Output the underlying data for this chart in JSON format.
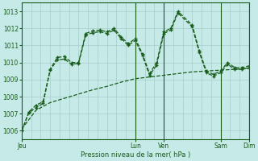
{
  "background_color": "#c5eae7",
  "grid_color": "#a8ccc9",
  "line_color": "#1a5c1a",
  "xlabel": "Pression niveau de la mer( hPa )",
  "ylim": [
    1005.5,
    1013.5
  ],
  "yticks": [
    1006,
    1007,
    1008,
    1009,
    1010,
    1011,
    1012,
    1013
  ],
  "xlim": [
    0,
    192
  ],
  "series1_x": [
    0,
    6,
    12,
    18,
    24,
    30,
    36,
    42,
    48,
    54,
    60,
    66,
    72,
    78,
    84,
    90,
    96,
    102,
    108,
    114,
    120,
    126,
    132,
    144,
    150,
    156,
    162,
    168,
    174,
    180,
    186,
    192
  ],
  "series1_y": [
    1006.0,
    1007.1,
    1007.5,
    1007.7,
    1009.6,
    1010.3,
    1010.35,
    1010.0,
    1010.0,
    1011.7,
    1011.85,
    1011.9,
    1011.8,
    1012.0,
    1011.5,
    1011.1,
    1011.4,
    1010.5,
    1009.35,
    1010.0,
    1011.8,
    1012.0,
    1013.0,
    1012.2,
    1010.7,
    1009.5,
    1009.3,
    1009.5,
    1010.0,
    1009.7,
    1009.7,
    1009.8
  ],
  "series2_x": [
    0,
    12,
    24,
    36,
    48,
    60,
    72,
    84,
    96,
    108,
    120,
    132,
    144,
    156,
    168,
    180,
    192
  ],
  "series2_y": [
    1006.1,
    1007.2,
    1007.65,
    1007.9,
    1008.15,
    1008.4,
    1008.6,
    1008.85,
    1009.05,
    1009.15,
    1009.25,
    1009.35,
    1009.45,
    1009.5,
    1009.55,
    1009.6,
    1009.65
  ],
  "series3_x": [
    0,
    6,
    12,
    18,
    24,
    30,
    36,
    42,
    48,
    54,
    60,
    66,
    72,
    78,
    84,
    90,
    96,
    102,
    108,
    114,
    120,
    126,
    132,
    144,
    150,
    156,
    162,
    168,
    174,
    180,
    186,
    192
  ],
  "series3_y": [
    1006.0,
    1007.05,
    1007.35,
    1007.6,
    1009.55,
    1010.15,
    1010.2,
    1009.9,
    1009.95,
    1011.6,
    1011.75,
    1011.8,
    1011.7,
    1011.9,
    1011.4,
    1011.0,
    1011.3,
    1010.4,
    1009.25,
    1009.85,
    1011.7,
    1011.9,
    1012.9,
    1012.1,
    1010.6,
    1009.4,
    1009.2,
    1009.4,
    1009.9,
    1009.6,
    1009.6,
    1009.7
  ],
  "day_positions": [
    0,
    96,
    120,
    168,
    192
  ],
  "day_labels": [
    "Jeu",
    "Lun",
    "Ven",
    "Sam",
    "Dim"
  ],
  "vert_lines": [
    96,
    120,
    168,
    192
  ],
  "figsize": [
    3.2,
    2.0
  ],
  "dpi": 100
}
